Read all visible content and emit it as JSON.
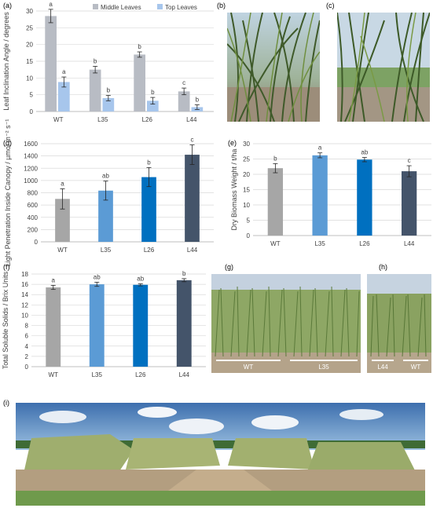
{
  "figure": {
    "panel_labels": [
      "(a)",
      "(b)",
      "(c)",
      "(d)",
      "(e)",
      "(f)",
      "(g)",
      "(h)",
      "(i)"
    ],
    "photo_captions": {
      "g_left": "WT",
      "g_right": "L35",
      "h_left": "L44",
      "h_right": "WT"
    }
  },
  "colors": {
    "middle_leaves": "#b8bcc4",
    "top_leaves": "#a7c6ec",
    "WT": "#a6a6a6",
    "L35": "#5b9bd5",
    "L26": "#0070c0",
    "L44": "#44546a",
    "grid": "#d9d9d9"
  },
  "chart_data": [
    {
      "id": "a",
      "type": "bar",
      "ylabel": "Leaf Inclination Angle / degrees",
      "categories": [
        "WT",
        "L35",
        "L26",
        "L44"
      ],
      "ylim": [
        0,
        30
      ],
      "yticks": [
        0,
        5,
        10,
        15,
        20,
        25,
        30
      ],
      "grid": true,
      "legend": "top-right",
      "series": [
        {
          "name": "Middle Leaves",
          "values": [
            28.5,
            12.5,
            17,
            6
          ],
          "errors": [
            2,
            1,
            0.8,
            1
          ],
          "letters": [
            "a",
            "b",
            "b",
            "c"
          ]
        },
        {
          "name": "Top Leaves",
          "values": [
            8.8,
            4,
            3.2,
            1.3
          ],
          "errors": [
            1.5,
            0.8,
            1,
            0.7
          ],
          "letters": [
            "a",
            "b",
            "b",
            "b"
          ]
        }
      ]
    },
    {
      "id": "d",
      "type": "bar",
      "ylabel": "Light Penetration Inside Canopy / µmol m⁻² s⁻¹",
      "categories": [
        "WT",
        "L35",
        "L26",
        "L44"
      ],
      "ylim": [
        0,
        1600
      ],
      "yticks": [
        0,
        200,
        400,
        600,
        800,
        1000,
        1200,
        1400,
        1600
      ],
      "grid": true,
      "values": [
        700,
        835,
        1055,
        1420
      ],
      "errors": [
        165,
        155,
        155,
        160
      ],
      "letters": [
        "a",
        "ab",
        "b",
        "c"
      ]
    },
    {
      "id": "e",
      "type": "bar",
      "ylabel": "Dry Biomass Weight / t/ha",
      "categories": [
        "WT",
        "L35",
        "L26",
        "L44"
      ],
      "ylim": [
        0,
        30
      ],
      "yticks": [
        0,
        5,
        10,
        15,
        20,
        25,
        30
      ],
      "grid": true,
      "values": [
        22,
        26.2,
        24.8,
        21
      ],
      "errors": [
        1.5,
        0.8,
        0.7,
        1.8
      ],
      "letters": [
        "b",
        "a",
        "ab",
        "c"
      ]
    },
    {
      "id": "f",
      "type": "bar",
      "ylabel": "Total Soluble Solids / Brix Units",
      "categories": [
        "WT",
        "L35",
        "L26",
        "L44"
      ],
      "ylim": [
        0,
        18
      ],
      "yticks": [
        0,
        2,
        4,
        6,
        8,
        10,
        12,
        14,
        16,
        18
      ],
      "grid": true,
      "values": [
        15.4,
        16,
        15.9,
        16.8
      ],
      "errors": [
        0.4,
        0.4,
        0.2,
        0.3
      ],
      "letters": [
        "a",
        "ab",
        "ab",
        "b"
      ]
    }
  ]
}
